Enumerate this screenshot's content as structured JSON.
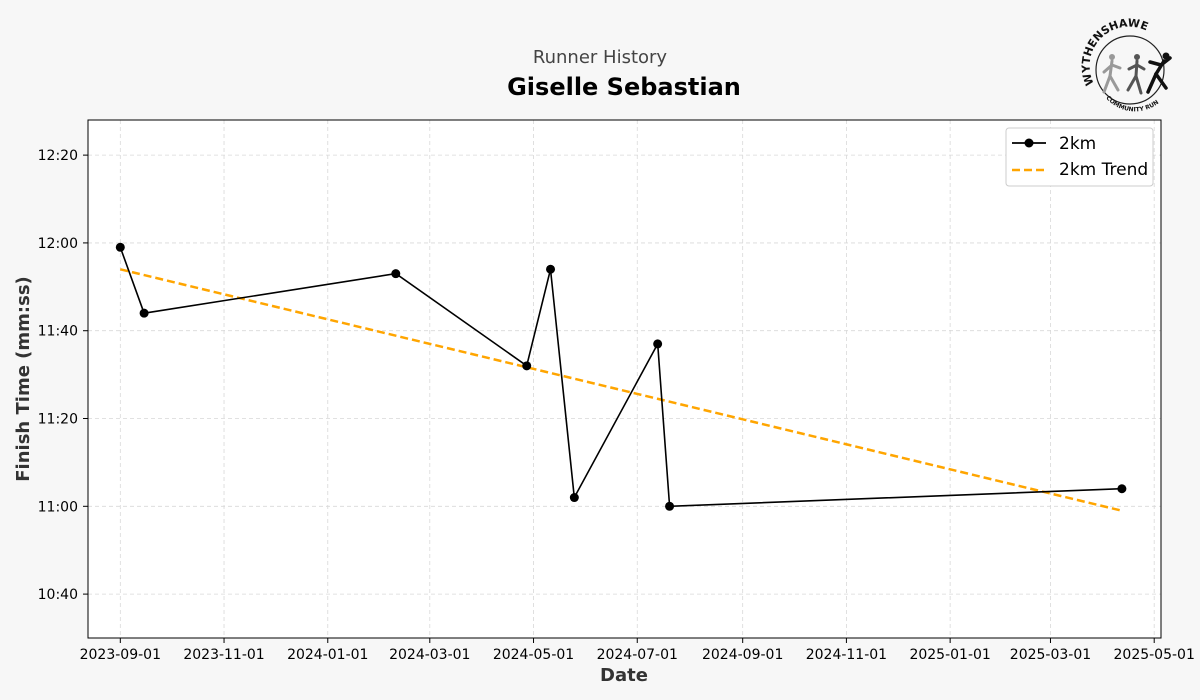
{
  "header": {
    "supertitle": "Runner History",
    "title": "Giselle Sebastian"
  },
  "logo": {
    "name": "WYTHENSHAWE",
    "subtitle": "COMMUNITY RUN"
  },
  "chart_data": {
    "type": "line",
    "xlabel": "Date",
    "ylabel": "Finish Time (mm:ss)",
    "x_ticks": [
      "2023-09-01",
      "2023-11-01",
      "2024-01-01",
      "2024-03-01",
      "2024-05-01",
      "2024-07-01",
      "2024-09-01",
      "2024-11-01",
      "2025-01-01",
      "2025-03-01",
      "2025-05-01"
    ],
    "y_ticks": [
      "10:40",
      "11:00",
      "11:20",
      "11:40",
      "12:00",
      "12:20"
    ],
    "xlim": [
      "2023-08-13",
      "2025-05-05"
    ],
    "ylim": [
      "10:30",
      "12:28"
    ],
    "grid": true,
    "legend": "top-right",
    "series": [
      {
        "name": "2km",
        "color": "#000000",
        "style": "solid-marker",
        "points": [
          {
            "x": "2023-09-01",
            "y": "11:59"
          },
          {
            "x": "2023-09-15",
            "y": "11:44"
          },
          {
            "x": "2024-02-10",
            "y": "11:53"
          },
          {
            "x": "2024-04-27",
            "y": "11:32"
          },
          {
            "x": "2024-05-11",
            "y": "11:54"
          },
          {
            "x": "2024-05-25",
            "y": "11:02"
          },
          {
            "x": "2024-07-13",
            "y": "11:37"
          },
          {
            "x": "2024-07-20",
            "y": "11:00"
          },
          {
            "x": "2025-04-12",
            "y": "11:04"
          }
        ]
      },
      {
        "name": "2km Trend",
        "color": "#ffa500",
        "style": "dashed",
        "points": [
          {
            "x": "2023-09-01",
            "y": "11:54"
          },
          {
            "x": "2025-04-12",
            "y": "10:59"
          }
        ]
      }
    ]
  }
}
